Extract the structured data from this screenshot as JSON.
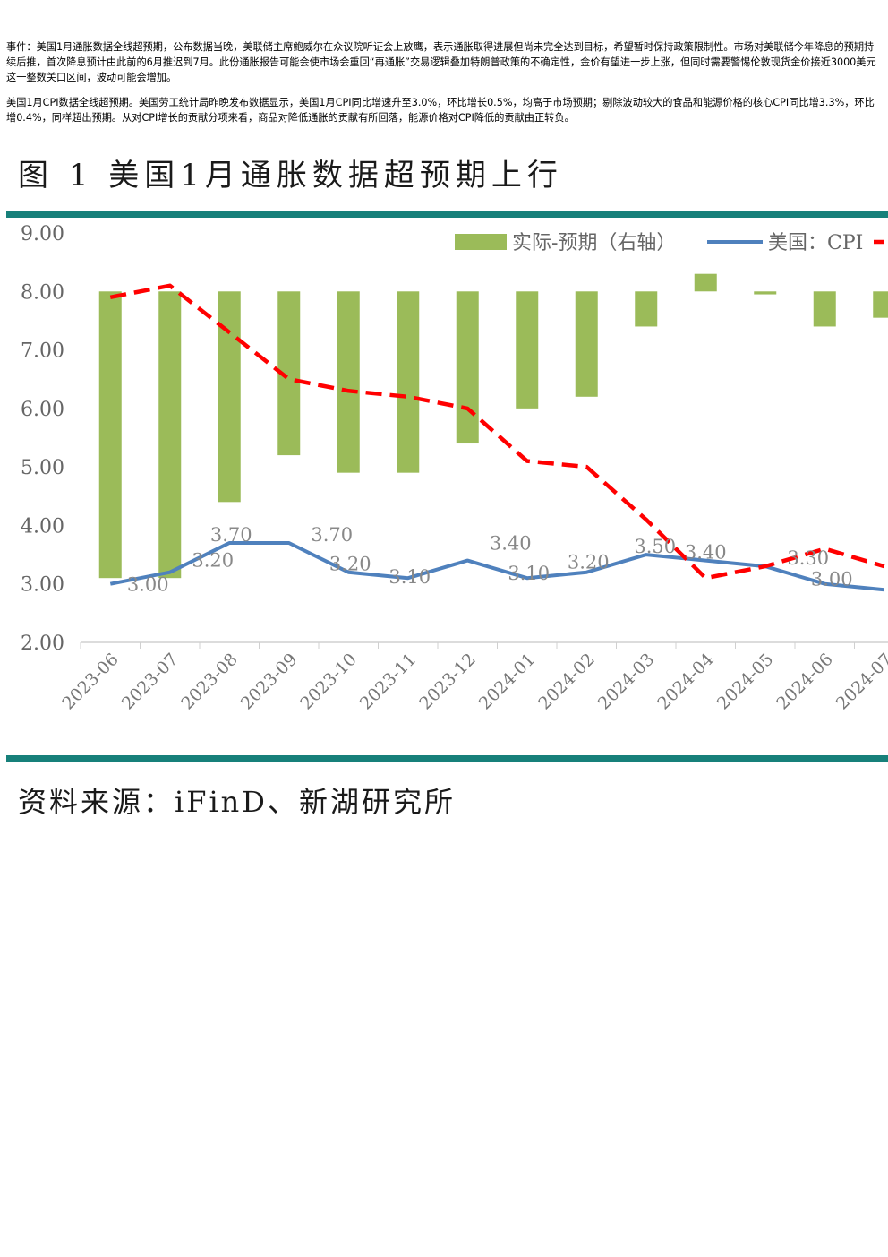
{
  "paragraphs": {
    "p1": "事件：美国1月通胀数据全线超预期，公布数据当晚，美联储主席鲍威尔在众议院听证会上放鹰，表示通胀取得进展但尚未完全达到目标，希望暂时保持政策限制性。市场对美联储今年降息的预期持续后推，首次降息预计由此前的6月推迟到7月。此份通胀报告可能会使市场会重回“再通胀”交易逻辑叠加特朗普政策的不确定性，金价有望进一步上涨，但同时需要警惕伦敦现货金价接近3000美元这一整数关口区间，波动可能会增加。",
    "p2": "美国1月CPI数据全线超预期。美国劳工统计局昨晚发布数据显示，美国1月CPI同比增速升至3.0%，环比增长0.5%，均高于市场预期；剔除波动较大的食品和能源价格的核心CPI同比增3.3%，环比增0.4%，同样超出预期。从对CPI增长的贡献分项来看，商品对降低通胀的贡献有所回落，能源价格对CPI降低的贡献由正转负。"
  },
  "figure": {
    "title": "图 1 美国1月通胀数据超预期上行",
    "source": "资料来源：iFinD、新湖研究所"
  },
  "chart_data": {
    "type": "bar+line",
    "categories": [
      "2023-06",
      "2023-07",
      "2023-08",
      "2023-09",
      "2023-10",
      "2023-11",
      "2023-12",
      "2024-01",
      "2024-02",
      "2024-03",
      "2024-04",
      "2024-05",
      "2024-06",
      "2024-07"
    ],
    "y_ticks": [
      "9.00",
      "8.00",
      "7.00",
      "6.00",
      "5.00",
      "4.00",
      "3.00",
      "2.00"
    ],
    "ylim": [
      2,
      9
    ],
    "bar_baseline": 8,
    "legend": [
      "实际-预期（右轴）",
      "美国：CPI"
    ],
    "series": [
      {
        "name": "实际-预期（右轴）",
        "kind": "bar",
        "color": "#9bbb59",
        "axis": "right",
        "levels": [
          3.1,
          3.1,
          4.4,
          5.2,
          4.9,
          4.9,
          5.4,
          6.0,
          6.2,
          7.4,
          8.3,
          7.95,
          7.4,
          7.55
        ]
      },
      {
        "name": "美国：CPI",
        "kind": "line",
        "color": "#4f81bd",
        "values": [
          3.0,
          3.2,
          3.7,
          3.7,
          3.2,
          3.1,
          3.4,
          3.1,
          3.2,
          3.5,
          3.4,
          3.3,
          3.0,
          2.9
        ],
        "labels": [
          "3.00",
          "3.20",
          "3.70",
          "3.70",
          "3.20",
          "3.10",
          "3.40",
          "3.10",
          "3.20",
          "3.50",
          "3.40",
          "3.30",
          "3.00",
          ""
        ]
      },
      {
        "kind": "line-dashed",
        "color": "#ff0000",
        "values": [
          7.9,
          8.1,
          7.3,
          6.5,
          6.3,
          6.2,
          6.0,
          5.1,
          5.0,
          4.1,
          3.1,
          3.3,
          3.6,
          3.3
        ]
      }
    ]
  }
}
